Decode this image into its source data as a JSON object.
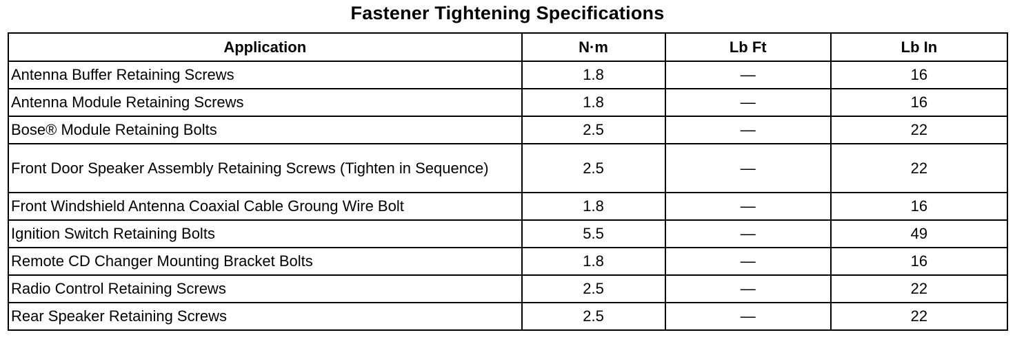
{
  "title": "Fastener Tightening Specifications",
  "headers": [
    "Application",
    "N·m",
    "Lb Ft",
    "Lb In"
  ],
  "rows": [
    [
      "Antenna Buffer Retaining Screws",
      "1.8",
      "—",
      "16"
    ],
    [
      "Antenna Module Retaining Screws",
      "1.8",
      "—",
      "16"
    ],
    [
      "Bose® Module Retaining Bolts",
      "2.5",
      "—",
      "22"
    ],
    [
      "Front Door Speaker Assembly Retaining Screws (Tighten in Sequence)",
      "2.5",
      "—",
      "22"
    ],
    [
      "Front Windshield Antenna Coaxial Cable Groung Wire Bolt",
      "1.8",
      "—",
      "16"
    ],
    [
      "Ignition Switch Retaining Bolts",
      "5.5",
      "—",
      "49"
    ],
    [
      "Remote CD Changer Mounting Bracket Bolts",
      "1.8",
      "—",
      "16"
    ],
    [
      "Radio Control Retaining Screws",
      "2.5",
      "—",
      "22"
    ],
    [
      "Rear Speaker Retaining Screws",
      "2.5",
      "—",
      "22"
    ]
  ]
}
